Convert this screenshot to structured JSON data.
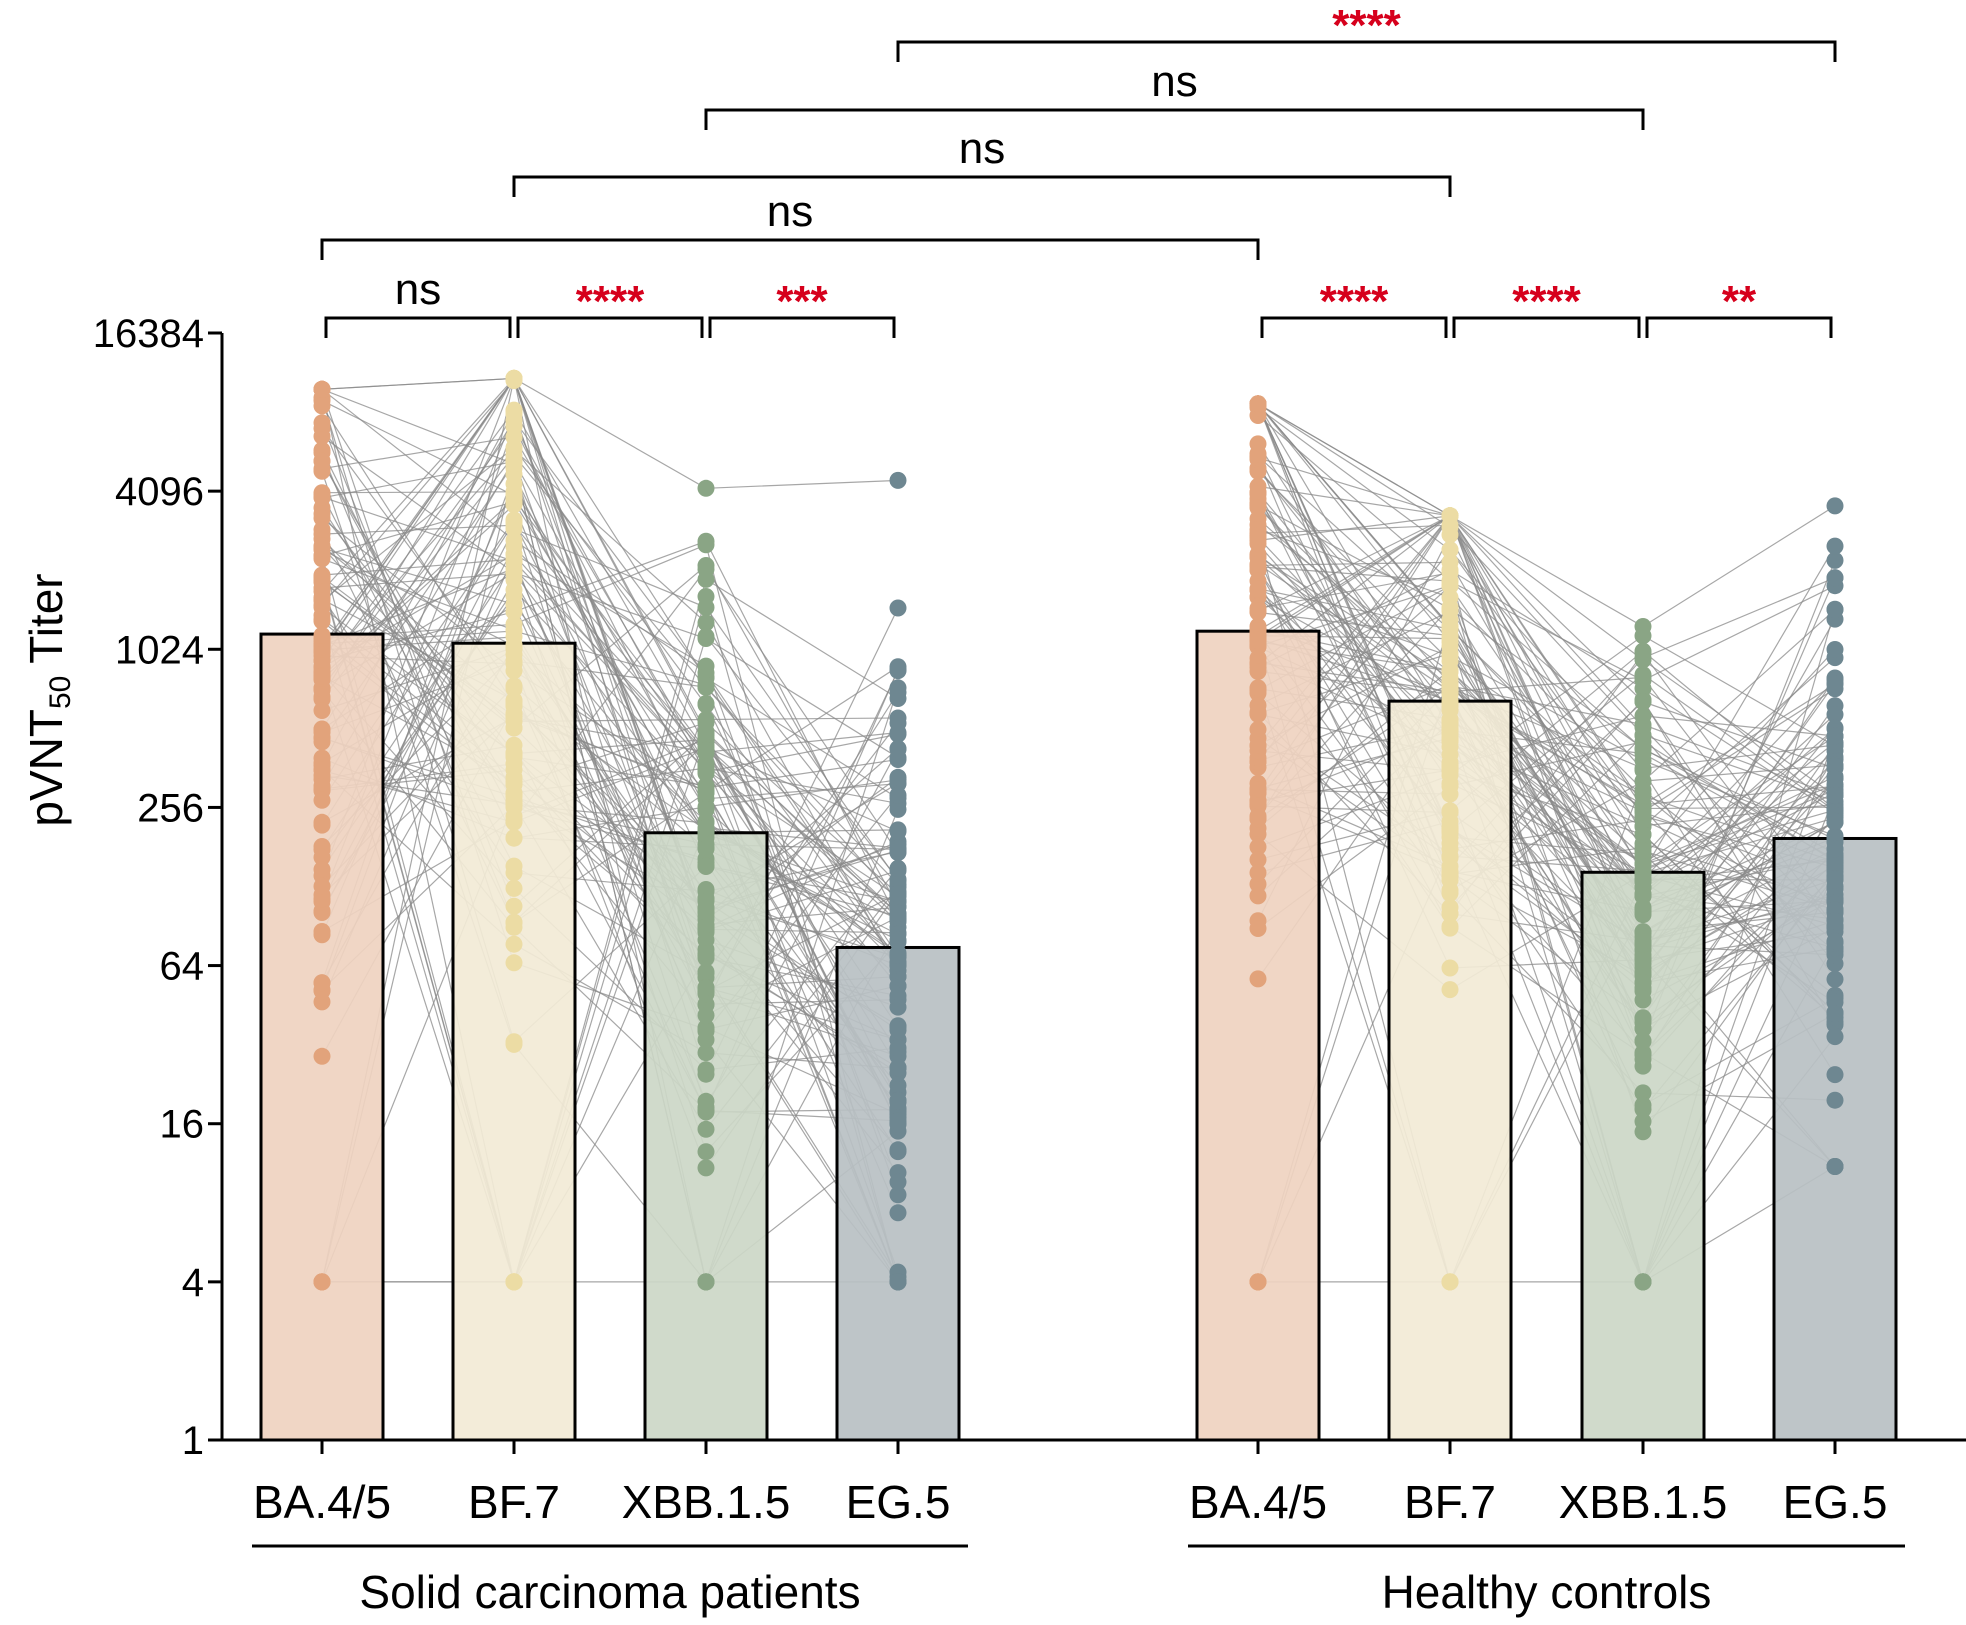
{
  "chart_data": {
    "type": "bar",
    "scale": "log2",
    "ylabel": "pVNT",
    "ylabel_subscript": "50",
    "ylabel_suffix": " Titer",
    "yticks": [
      1,
      4,
      16,
      64,
      256,
      1024,
      4096,
      16384
    ],
    "ylim": [
      1,
      16384
    ],
    "groups": [
      {
        "name": "Solid carcinoma patients",
        "categories": [
          "BA.4/5",
          "BF.7",
          "XBB.1.5",
          "EG.5"
        ],
        "geomean": [
          1170,
          1080,
          205,
          75
        ],
        "point_range": [
          [
            4,
            10000
          ],
          [
            4,
            11000
          ],
          [
            4,
            4200
          ],
          [
            4,
            4500
          ]
        ]
      },
      {
        "name": "Healthy controls",
        "categories": [
          "BA.4/5",
          "BF.7",
          "XBB.1.5",
          "EG.5"
        ],
        "geomean": [
          1200,
          650,
          145,
          195
        ],
        "point_range": [
          [
            4,
            8800
          ],
          [
            4,
            3300
          ],
          [
            4,
            1250
          ],
          [
            11,
            3600
          ]
        ]
      }
    ],
    "colors": {
      "bars": [
        "#efd3c0",
        "#f2ead6",
        "#ccd7c7",
        "#b8c0c3"
      ],
      "points": [
        "#e2a37b",
        "#ecdca4",
        "#8aa585",
        "#6e8791"
      ],
      "lines": "#8a8a8a",
      "sig_red": "#d6001c"
    },
    "comparisons": [
      {
        "from": 0,
        "to": 1,
        "label": "ns"
      },
      {
        "from": 1,
        "to": 2,
        "label": "****"
      },
      {
        "from": 2,
        "to": 3,
        "label": "***"
      },
      {
        "from": 4,
        "to": 5,
        "label": "****"
      },
      {
        "from": 5,
        "to": 6,
        "label": "****"
      },
      {
        "from": 6,
        "to": 7,
        "label": "**"
      },
      {
        "from": 0,
        "to": 4,
        "label": "ns"
      },
      {
        "from": 1,
        "to": 5,
        "label": "ns"
      },
      {
        "from": 2,
        "to": 6,
        "label": "ns"
      },
      {
        "from": 3,
        "to": 7,
        "label": "****"
      }
    ]
  }
}
